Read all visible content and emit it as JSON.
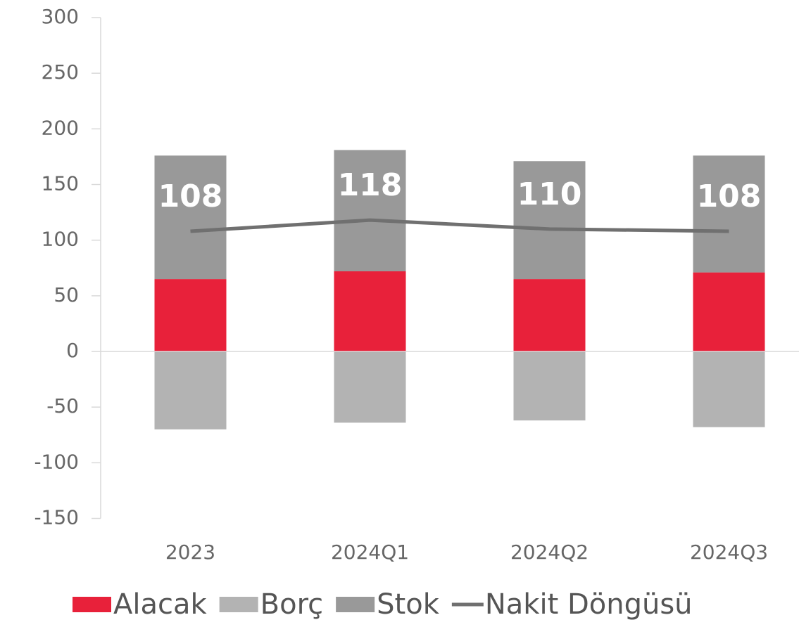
{
  "chart_data": {
    "type": "stacked_bar_line",
    "categories": [
      "2023",
      "2024Q1",
      "2024Q2",
      "2024Q3"
    ],
    "series": [
      {
        "name": "Alacak",
        "color": "#e8213a",
        "type": "bar",
        "values": [
          65,
          72,
          65,
          71
        ]
      },
      {
        "name": "Borç",
        "color": "#b3b3b3",
        "type": "bar",
        "values": [
          -70,
          -64,
          -62,
          -68
        ]
      },
      {
        "name": "Stok",
        "color": "#999999",
        "type": "bar",
        "values": [
          111,
          109,
          106,
          105
        ]
      },
      {
        "name": "Nakit Döngüsü",
        "color": "#707070",
        "type": "line",
        "values": [
          108,
          118,
          110,
          108
        ]
      }
    ],
    "ylim": [
      -150,
      300
    ],
    "yticks": [
      -150,
      -100,
      -50,
      0,
      50,
      100,
      150,
      200,
      250,
      300
    ]
  }
}
